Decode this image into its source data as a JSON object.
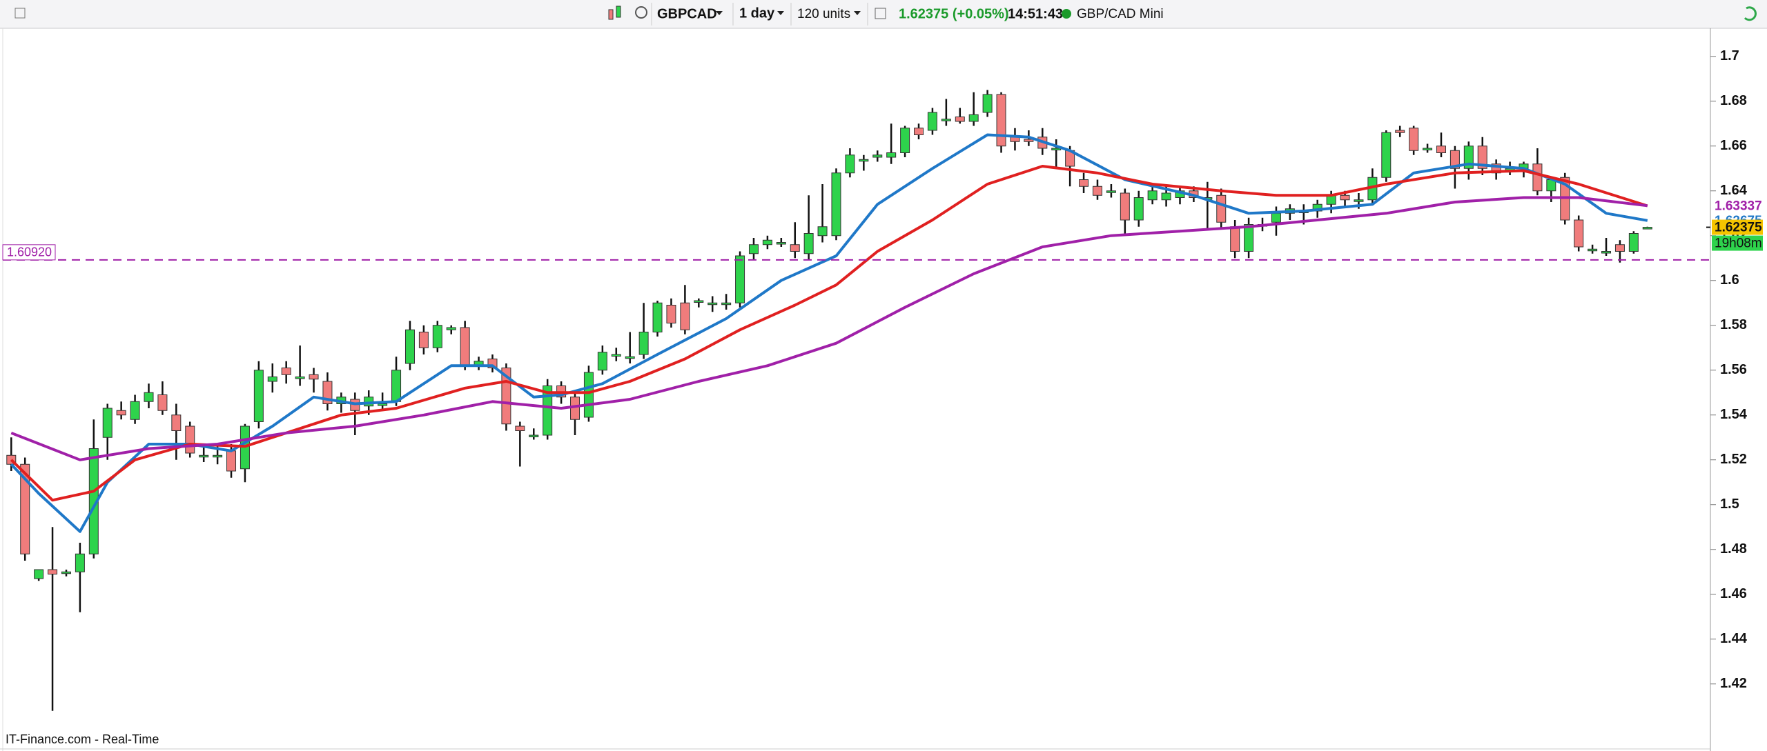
{
  "toolbar": {
    "symbol": "GBPCAD",
    "interval": "1 day",
    "units": "120 units",
    "quote": "1.62375 (+0.05%)",
    "time": "14:51:43",
    "instrument": "GBP/CAD Mini"
  },
  "footer": "IT-Finance.com - Real-Time",
  "chart_data": {
    "type": "candlestick",
    "up_color": "#2ed34c",
    "down_color": "#f07c7c",
    "ylim": [
      1.391,
      1.711
    ],
    "yticks": [
      1.42,
      1.44,
      1.46,
      1.48,
      1.5,
      1.52,
      1.54,
      1.56,
      1.58,
      1.6,
      1.62,
      1.64,
      1.66,
      1.68,
      1.7
    ],
    "ohlc": [
      [
        1.522,
        1.53,
        1.515,
        1.518
      ],
      [
        1.518,
        1.521,
        1.475,
        1.478
      ],
      [
        1.467,
        1.471,
        1.466,
        1.471
      ],
      [
        1.471,
        1.49,
        1.408,
        1.469
      ],
      [
        1.47,
        1.471,
        1.468,
        1.47
      ],
      [
        1.47,
        1.483,
        1.452,
        1.478
      ],
      [
        1.478,
        1.538,
        1.476,
        1.525
      ],
      [
        1.53,
        1.545,
        1.52,
        1.543
      ],
      [
        1.542,
        1.546,
        1.538,
        1.54
      ],
      [
        1.538,
        1.549,
        1.536,
        1.546
      ],
      [
        1.546,
        1.554,
        1.543,
        1.55
      ],
      [
        1.549,
        1.555,
        1.54,
        1.542
      ],
      [
        1.54,
        1.545,
        1.52,
        1.533
      ],
      [
        1.535,
        1.537,
        1.521,
        1.523
      ],
      [
        1.522,
        1.526,
        1.519,
        1.522
      ],
      [
        1.522,
        1.526,
        1.518,
        1.522
      ],
      [
        1.524,
        1.527,
        1.512,
        1.515
      ],
      [
        1.516,
        1.536,
        1.51,
        1.535
      ],
      [
        1.537,
        1.564,
        1.534,
        1.56
      ],
      [
        1.555,
        1.563,
        1.55,
        1.557
      ],
      [
        1.561,
        1.564,
        1.554,
        1.558
      ],
      [
        1.557,
        1.571,
        1.553,
        1.557
      ],
      [
        1.558,
        1.561,
        1.55,
        1.556
      ],
      [
        1.555,
        1.559,
        1.542,
        1.545
      ],
      [
        1.545,
        1.55,
        1.541,
        1.548
      ],
      [
        1.547,
        1.55,
        1.531,
        1.542
      ],
      [
        1.544,
        1.551,
        1.54,
        1.548
      ],
      [
        1.545,
        1.55,
        1.542,
        1.545
      ],
      [
        1.546,
        1.566,
        1.544,
        1.56
      ],
      [
        1.563,
        1.582,
        1.56,
        1.578
      ],
      [
        1.577,
        1.58,
        1.567,
        1.57
      ],
      [
        1.57,
        1.582,
        1.568,
        1.58
      ],
      [
        1.578,
        1.58,
        1.576,
        1.579
      ],
      [
        1.579,
        1.582,
        1.56,
        1.562
      ],
      [
        1.562,
        1.566,
        1.56,
        1.564
      ],
      [
        1.565,
        1.567,
        1.559,
        1.561
      ],
      [
        1.561,
        1.563,
        1.533,
        1.536
      ],
      [
        1.535,
        1.537,
        1.517,
        1.533
      ],
      [
        1.531,
        1.534,
        1.529,
        1.531
      ],
      [
        1.531,
        1.556,
        1.529,
        1.553
      ],
      [
        1.553,
        1.555,
        1.545,
        1.548
      ],
      [
        1.548,
        1.55,
        1.531,
        1.538
      ],
      [
        1.539,
        1.562,
        1.537,
        1.559
      ],
      [
        1.56,
        1.571,
        1.558,
        1.568
      ],
      [
        1.567,
        1.57,
        1.564,
        1.567
      ],
      [
        1.566,
        1.577,
        1.563,
        1.566
      ],
      [
        1.567,
        1.59,
        1.565,
        1.577
      ],
      [
        1.577,
        1.591,
        1.575,
        1.59
      ],
      [
        1.589,
        1.592,
        1.579,
        1.581
      ],
      [
        1.59,
        1.598,
        1.576,
        1.578
      ],
      [
        1.591,
        1.592,
        1.588,
        1.591
      ],
      [
        1.59,
        1.593,
        1.586,
        1.59
      ],
      [
        1.59,
        1.594,
        1.587,
        1.59
      ],
      [
        1.59,
        1.613,
        1.588,
        1.611
      ],
      [
        1.612,
        1.619,
        1.609,
        1.616
      ],
      [
        1.616,
        1.62,
        1.614,
        1.618
      ],
      [
        1.617,
        1.619,
        1.615,
        1.617
      ],
      [
        1.616,
        1.626,
        1.61,
        1.613
      ],
      [
        1.612,
        1.638,
        1.609,
        1.621
      ],
      [
        1.62,
        1.643,
        1.617,
        1.624
      ],
      [
        1.62,
        1.65,
        1.618,
        1.648
      ],
      [
        1.648,
        1.659,
        1.646,
        1.656
      ],
      [
        1.654,
        1.656,
        1.649,
        1.654
      ],
      [
        1.655,
        1.658,
        1.653,
        1.656
      ],
      [
        1.655,
        1.67,
        1.652,
        1.657
      ],
      [
        1.657,
        1.669,
        1.655,
        1.668
      ],
      [
        1.668,
        1.67,
        1.663,
        1.665
      ],
      [
        1.667,
        1.677,
        1.665,
        1.675
      ],
      [
        1.672,
        1.681,
        1.669,
        1.672
      ],
      [
        1.673,
        1.677,
        1.67,
        1.671
      ],
      [
        1.671,
        1.684,
        1.669,
        1.674
      ],
      [
        1.675,
        1.685,
        1.673,
        1.683
      ],
      [
        1.683,
        1.684,
        1.657,
        1.66
      ],
      [
        1.664,
        1.668,
        1.658,
        1.662
      ],
      [
        1.663,
        1.667,
        1.66,
        1.662
      ],
      [
        1.664,
        1.668,
        1.656,
        1.659
      ],
      [
        1.659,
        1.663,
        1.65,
        1.659
      ],
      [
        1.658,
        1.66,
        1.642,
        1.651
      ],
      [
        1.645,
        1.648,
        1.639,
        1.642
      ],
      [
        1.642,
        1.645,
        1.636,
        1.638
      ],
      [
        1.64,
        1.643,
        1.637,
        1.64
      ],
      [
        1.639,
        1.641,
        1.62,
        1.627
      ],
      [
        1.627,
        1.64,
        1.624,
        1.637
      ],
      [
        1.636,
        1.642,
        1.634,
        1.64
      ],
      [
        1.636,
        1.642,
        1.633,
        1.639
      ],
      [
        1.637,
        1.642,
        1.634,
        1.64
      ],
      [
        1.64,
        1.642,
        1.635,
        1.637
      ],
      [
        1.637,
        1.644,
        1.623,
        1.637
      ],
      [
        1.638,
        1.641,
        1.623,
        1.626
      ],
      [
        1.624,
        1.627,
        1.61,
        1.613
      ],
      [
        1.613,
        1.628,
        1.61,
        1.625
      ],
      [
        1.625,
        1.628,
        1.622,
        1.625
      ],
      [
        1.626,
        1.633,
        1.62,
        1.63
      ],
      [
        1.63,
        1.634,
        1.627,
        1.632
      ],
      [
        1.631,
        1.634,
        1.625,
        1.631
      ],
      [
        1.631,
        1.636,
        1.628,
        1.634
      ],
      [
        1.634,
        1.64,
        1.63,
        1.638
      ],
      [
        1.638,
        1.64,
        1.633,
        1.636
      ],
      [
        1.636,
        1.639,
        1.632,
        1.636
      ],
      [
        1.636,
        1.65,
        1.634,
        1.646
      ],
      [
        1.646,
        1.667,
        1.644,
        1.666
      ],
      [
        1.667,
        1.669,
        1.664,
        1.666
      ],
      [
        1.668,
        1.669,
        1.656,
        1.658
      ],
      [
        1.659,
        1.661,
        1.657,
        1.659
      ],
      [
        1.66,
        1.666,
        1.655,
        1.657
      ],
      [
        1.658,
        1.66,
        1.641,
        1.65
      ],
      [
        1.65,
        1.662,
        1.645,
        1.66
      ],
      [
        1.66,
        1.664,
        1.647,
        1.65
      ],
      [
        1.652,
        1.654,
        1.645,
        1.648
      ],
      [
        1.65,
        1.653,
        1.647,
        1.65
      ],
      [
        1.65,
        1.653,
        1.646,
        1.652
      ],
      [
        1.652,
        1.659,
        1.638,
        1.64
      ],
      [
        1.64,
        1.646,
        1.635,
        1.645
      ],
      [
        1.646,
        1.648,
        1.625,
        1.627
      ],
      [
        1.627,
        1.629,
        1.613,
        1.615
      ],
      [
        1.614,
        1.616,
        1.612,
        1.614
      ],
      [
        1.613,
        1.619,
        1.611,
        1.613
      ],
      [
        1.616,
        1.618,
        1.608,
        1.613
      ],
      [
        1.613,
        1.622,
        1.612,
        1.621
      ],
      [
        1.6235,
        1.624,
        1.623,
        1.62375
      ]
    ],
    "lines": [
      {
        "color": "#1f78c8",
        "x": [
          0,
          2,
          5,
          7,
          10,
          13,
          16,
          19,
          22,
          25,
          28,
          32,
          35,
          38,
          40,
          43,
          47,
          52,
          56,
          60,
          63,
          67,
          71,
          74,
          77,
          81,
          86,
          90,
          94,
          99,
          102,
          106,
          110,
          113,
          116,
          119
        ],
        "values": [
          1.518,
          1.505,
          1.488,
          1.51,
          1.527,
          1.527,
          1.524,
          1.535,
          1.548,
          1.545,
          1.546,
          1.562,
          1.562,
          1.548,
          1.549,
          1.554,
          1.567,
          1.583,
          1.6,
          1.611,
          1.634,
          1.65,
          1.665,
          1.664,
          1.658,
          1.645,
          1.638,
          1.63,
          1.631,
          1.634,
          1.648,
          1.652,
          1.65,
          1.643,
          1.63,
          1.62675
        ],
        "last": {
          "value": 1.62675,
          "label": "1.62675"
        }
      },
      {
        "color": "#e02020",
        "x": [
          0,
          3,
          6,
          9,
          13,
          17,
          20,
          24,
          28,
          33,
          36,
          39,
          42,
          45,
          49,
          53,
          57,
          60,
          63,
          67,
          71,
          75,
          79,
          83,
          88,
          92,
          96,
          100,
          105,
          110,
          114,
          119
        ],
        "values": [
          1.52,
          1.502,
          1.506,
          1.52,
          1.527,
          1.526,
          1.532,
          1.54,
          1.543,
          1.552,
          1.555,
          1.55,
          1.55,
          1.555,
          1.565,
          1.578,
          1.589,
          1.598,
          1.613,
          1.627,
          1.643,
          1.651,
          1.648,
          1.643,
          1.64,
          1.638,
          1.638,
          1.643,
          1.648,
          1.649,
          1.643,
          1.6333
        ]
      },
      {
        "color": "#a020a8",
        "x": [
          0,
          5,
          10,
          15,
          20,
          25,
          30,
          35,
          40,
          45,
          50,
          55,
          60,
          65,
          70,
          75,
          80,
          85,
          90,
          95,
          100,
          105,
          110,
          114,
          119
        ],
        "values": [
          1.532,
          1.52,
          1.525,
          1.527,
          1.532,
          1.535,
          1.54,
          1.546,
          1.543,
          1.547,
          1.555,
          1.562,
          1.572,
          1.588,
          1.603,
          1.615,
          1.62,
          1.622,
          1.624,
          1.627,
          1.63,
          1.635,
          1.637,
          1.637,
          1.63337
        ],
        "last": {
          "value": 1.63337,
          "label": "1.63337"
        }
      }
    ],
    "hline": {
      "value": 1.6092,
      "label": "1.60920",
      "color": "#a020a8"
    },
    "last_price": {
      "value": 1.62375,
      "label": "1.62375"
    },
    "countdown": "19h08m"
  }
}
